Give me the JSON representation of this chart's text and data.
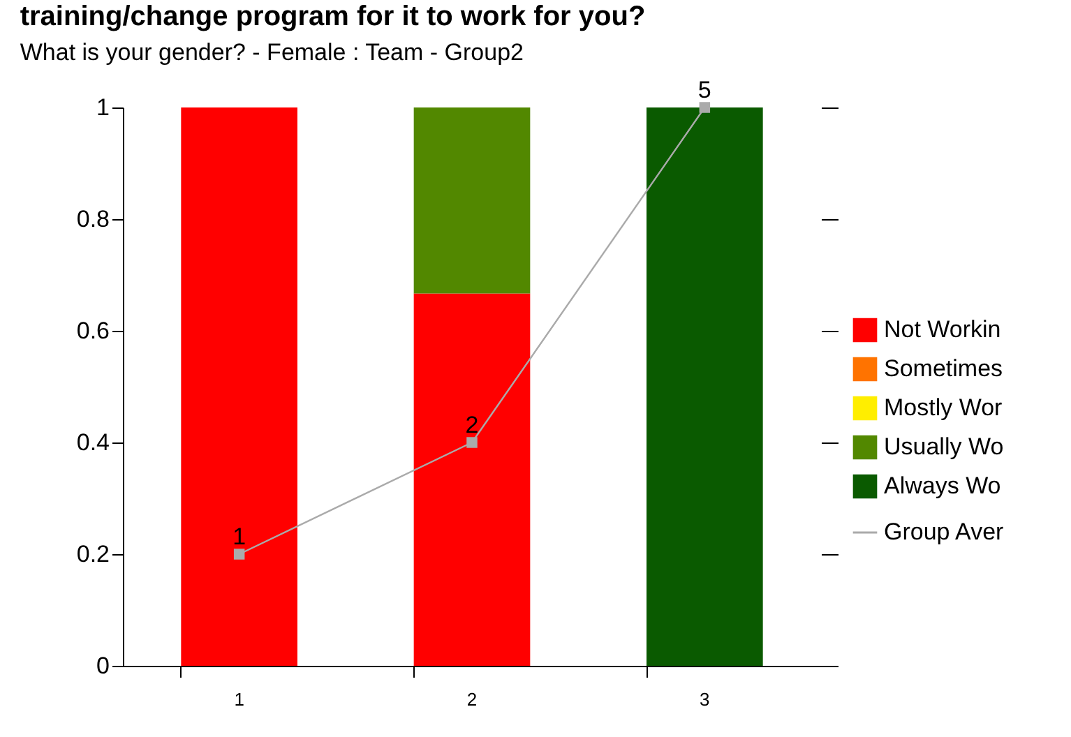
{
  "chart_data": {
    "type": "bar",
    "title": "training/change program for it to work for you?",
    "subtitle": "What is your gender?  - Female : Team - Group2",
    "categories": [
      "1",
      "2",
      "3"
    ],
    "stacked": true,
    "ylim": [
      0,
      1
    ],
    "yticks": [
      {
        "value": 0,
        "label": "0"
      },
      0.2,
      0.4,
      0.6,
      0.8,
      {
        "value": 1,
        "label": "1"
      }
    ],
    "y2lim": [
      0,
      5
    ],
    "y2ticks": [
      {
        "value": 0,
        "label": null
      },
      {
        "value": 1,
        "label": null
      },
      {
        "value": 2,
        "label": null
      },
      {
        "value": 3,
        "label": null
      },
      {
        "value": 4,
        "label": null
      },
      {
        "value": 5,
        "label": null
      }
    ],
    "grid": false,
    "legend": "right",
    "series": [
      {
        "name": "Not Workin",
        "color": "#ff0000",
        "values": [
          1,
          0.667,
          0
        ]
      },
      {
        "name": "Sometimes",
        "color": "#ff7300",
        "values": [
          0,
          0,
          0
        ]
      },
      {
        "name": "Mostly Wor",
        "color": "#ffee00",
        "values": [
          0,
          0,
          0
        ]
      },
      {
        "name": "Usually Wo",
        "color": "#528800",
        "values": [
          0,
          0.333,
          0
        ]
      },
      {
        "name": "Always Wo",
        "color": "#0a5a00",
        "values": [
          0,
          0,
          1
        ]
      },
      {
        "name": "Group Aver",
        "type": "line",
        "axis": "y2",
        "color": "#aaaaaa",
        "marker": "square",
        "line_style": "solid",
        "values": [
          1,
          2,
          5
        ],
        "value_labels": [
          "1",
          "2",
          "5"
        ]
      }
    ]
  }
}
